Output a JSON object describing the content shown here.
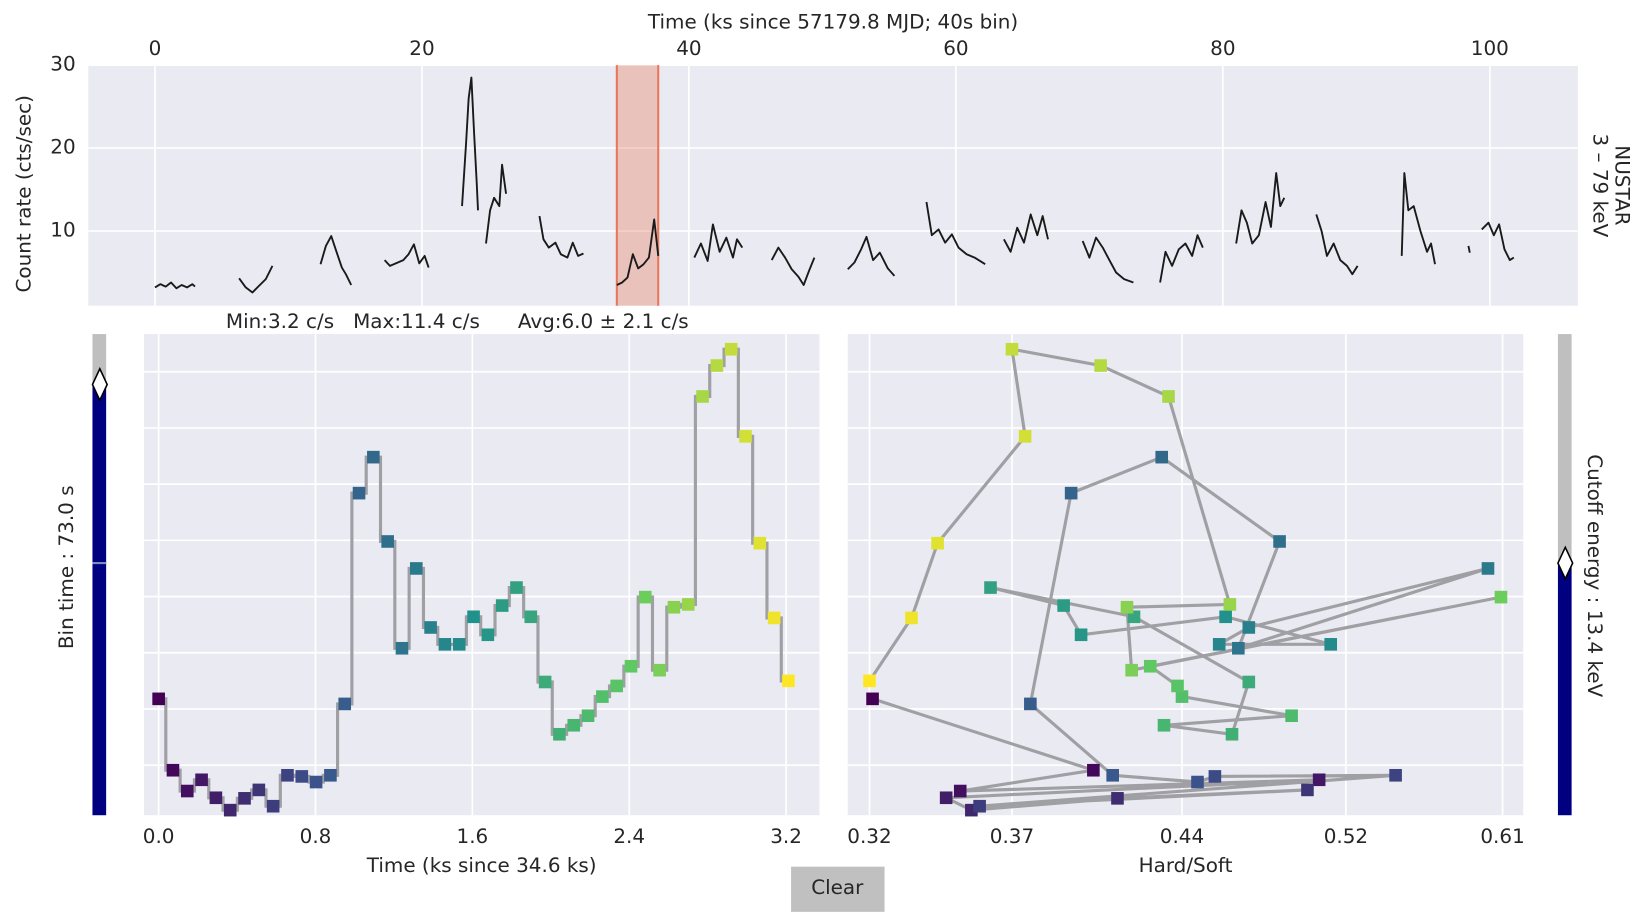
{
  "chart_data": [
    {
      "type": "line",
      "xlabel": "Time (ks since 57179.8 MJD; 40s bin)",
      "ylabel": "Count rate (cts/sec)",
      "side_label": [
        "NUSTAR",
        "3 – 79 keV"
      ],
      "x": [
        0,
        0.4,
        0.8,
        1.2,
        1.6,
        2.0,
        2.4,
        2.8,
        3.0,
        4.5,
        6.3,
        6.8,
        7.3,
        7.8,
        8.3,
        8.8,
        10.5,
        12.4,
        12.8,
        13.2,
        13.6,
        14.0,
        14.3,
        14.7,
        16.0,
        17.2,
        17.6,
        18.6,
        19.0,
        19.4,
        19.8,
        20.2,
        20.5,
        21.8,
        23.0,
        23.3,
        23.5,
        23.7,
        23.9,
        24.1,
        24.2,
        24.5,
        24.8,
        25.1,
        25.4,
        25.8,
        26.0,
        26.3,
        27.5,
        28.8,
        29.1,
        29.5,
        30.0,
        30.4,
        30.9,
        31.3,
        31.7,
        32.1,
        33.3,
        34.6,
        35.0,
        35.4,
        35.8,
        36.2,
        36.6,
        37.0,
        37.4,
        37.7,
        39.0,
        40.4,
        40.9,
        41.4,
        41.8,
        42.3,
        42.8,
        43.3,
        43.6,
        44.0,
        45.0,
        46.2,
        46.7,
        47.2,
        47.7,
        48.2,
        48.6,
        49.0,
        49.4,
        50.5,
        51.9,
        52.4,
        52.9,
        53.3,
        53.8,
        54.3,
        54.9,
        55.4,
        56.5,
        57.8,
        58.2,
        58.7,
        59.2,
        59.7,
        60.2,
        60.8,
        61.4,
        62.2,
        63.0,
        63.6,
        64.1,
        64.6,
        65.1,
        65.6,
        66.1,
        66.5,
        66.9,
        68.0,
        69.5,
        70.0,
        70.5,
        71.0,
        71.5,
        72.0,
        72.6,
        73.3,
        74.3,
        75.3,
        75.7,
        76.2,
        76.7,
        77.2,
        77.7,
        78.1,
        78.5,
        79.8,
        81.0,
        81.4,
        81.8,
        82.2,
        82.7,
        83.2,
        83.6,
        84.0,
        84.3,
        84.6,
        85.8,
        87.0,
        87.4,
        87.8,
        88.3,
        88.8,
        89.3,
        89.7,
        90.1,
        91.8,
        93.4,
        93.6,
        93.9,
        94.3,
        94.8,
        95.3,
        95.6,
        95.9,
        97.0,
        98.4,
        98.5,
        99.0,
        99.4,
        99.9,
        100.3,
        100.7,
        101.1,
        101.5,
        101.8
      ],
      "values": [
        3.2,
        3.6,
        3.3,
        3.8,
        3.1,
        3.5,
        3.2,
        3.6,
        3.3,
        null,
        4.3,
        3.2,
        2.6,
        3.4,
        4.2,
        5.8,
        null,
        6.0,
        8.2,
        9.4,
        7.5,
        5.6,
        4.8,
        3.5,
        null,
        6.5,
        5.8,
        6.5,
        7.2,
        8.4,
        6.1,
        7.0,
        5.6,
        null,
        13.0,
        20.5,
        26.0,
        28.5,
        22.0,
        16.0,
        12.5,
        null,
        8.5,
        12.5,
        14.0,
        13.0,
        18.0,
        14.5,
        null,
        11.8,
        9.0,
        8.0,
        8.6,
        7.2,
        6.8,
        8.6,
        7.0,
        7.3,
        null,
        3.5,
        3.8,
        4.4,
        7.2,
        5.5,
        6.0,
        6.8,
        11.4,
        7.0,
        null,
        6.8,
        8.5,
        6.4,
        10.8,
        7.5,
        9.2,
        6.8,
        9.0,
        8.0,
        null,
        6.5,
        8.0,
        6.8,
        5.4,
        4.5,
        3.5,
        5.2,
        6.8,
        null,
        5.4,
        6.2,
        7.8,
        9.3,
        6.5,
        7.4,
        5.5,
        4.6,
        null,
        13.5,
        9.5,
        10.2,
        8.6,
        9.6,
        8.0,
        7.2,
        6.8,
        6.0,
        null,
        9.0,
        7.5,
        10.4,
        8.6,
        12.0,
        9.5,
        11.8,
        9.0,
        null,
        8.8,
        6.8,
        9.2,
        8.0,
        6.5,
        5.0,
        4.2,
        3.8,
        null,
        3.8,
        7.5,
        5.8,
        7.8,
        8.5,
        7.0,
        9.5,
        8.0,
        null,
        8.5,
        12.5,
        11.0,
        8.5,
        9.5,
        13.5,
        10.5,
        17.0,
        13.0,
        14.0,
        null,
        12.0,
        10.0,
        7.0,
        8.5,
        6.5,
        5.8,
        4.8,
        5.8,
        null,
        7.0,
        17.0,
        12.5,
        13.0,
        10.0,
        7.5,
        8.5,
        6.0,
        null,
        8.2,
        7.4,
        null,
        10.2,
        11.0,
        9.5,
        10.8,
        7.8,
        6.5,
        6.8
      ],
      "color": "#1a1a1a",
      "span": [
        34.6,
        37.7
      ],
      "span_color": "#e8785a",
      "xlim": [
        -5,
        106.6
      ],
      "ylim": [
        1,
        30
      ],
      "xticks": [
        0,
        20,
        40,
        60,
        80,
        100
      ],
      "yticks": [
        10,
        20,
        30
      ],
      "xaxis_position": "top",
      "grid": true
    },
    {
      "type": "step",
      "annotation": "Min:3.2 c/s   Max:11.4 c/s      Avg:6.0 ± 2.1 c/s",
      "xlabel": "Time (ks since 34.6 ks)",
      "x": [
        0,
        0.073,
        0.146,
        0.219,
        0.292,
        0.365,
        0.438,
        0.511,
        0.584,
        0.657,
        0.73,
        0.803,
        0.876,
        0.949,
        1.022,
        1.095,
        1.168,
        1.241,
        1.314,
        1.387,
        1.46,
        1.533,
        1.606,
        1.679,
        1.752,
        1.825,
        1.898,
        1.971,
        2.044,
        2.117,
        2.19,
        2.263,
        2.336,
        2.409,
        2.482,
        2.555,
        2.628,
        2.701,
        2.774,
        2.847,
        2.92,
        2.993,
        3.066,
        3.139,
        3.212
      ],
      "values": [
        5.18,
        3.91,
        3.54,
        3.74,
        3.42,
        3.2,
        3.41,
        3.56,
        3.27,
        3.82,
        3.8,
        3.7,
        3.82,
        5.09,
        8.84,
        9.48,
        7.98,
        6.08,
        7.5,
        6.45,
        6.15,
        6.15,
        6.64,
        6.32,
        6.84,
        7.16,
        6.64,
        5.48,
        4.55,
        4.71,
        4.88,
        5.22,
        5.41,
        5.76,
        6.99,
        5.69,
        6.81,
        6.86,
        10.56,
        11.11,
        11.4,
        9.85,
        7.95,
        6.62,
        5.5
      ],
      "colormap": "viridis",
      "line_color": "#a0a0a4",
      "xlim": [
        -0.075,
        3.37
      ],
      "ylim": [
        3.11,
        11.67
      ],
      "xticks": [
        {
          "value": 0,
          "label": "0.0"
        },
        0.8,
        1.6,
        2.4,
        3.2
      ],
      "ygrid": [
        4,
        5,
        6,
        7,
        8,
        9,
        10,
        11
      ],
      "grid": true
    },
    {
      "type": "scatter",
      "xlabel": "Hard/Soft",
      "x": [
        0.321,
        0.402,
        0.351,
        0.506,
        0.346,
        0.355,
        0.412,
        0.5,
        0.358,
        0.547,
        0.455,
        0.447,
        0.41,
        0.377,
        0.393,
        0.431,
        0.486,
        0.466,
        0.601,
        0.471,
        0.457,
        0.512,
        0.46,
        0.397,
        0.39,
        0.362,
        0.419,
        0.471,
        0.463,
        0.432,
        0.492,
        0.44,
        0.438,
        0.426,
        0.609,
        0.418,
        0.416,
        0.462,
        0.434,
        0.405,
        0.37,
        0.375,
        0.343,
        0.334,
        0.32
      ],
      "values": [
        5.18,
        3.91,
        3.54,
        3.74,
        3.42,
        3.2,
        3.41,
        3.56,
        3.27,
        3.82,
        3.8,
        3.7,
        3.82,
        5.09,
        8.84,
        9.48,
        7.98,
        6.08,
        7.5,
        6.45,
        6.15,
        6.15,
        6.64,
        6.32,
        6.84,
        7.16,
        6.64,
        5.48,
        4.55,
        4.71,
        4.88,
        5.22,
        5.41,
        5.76,
        6.99,
        5.69,
        6.81,
        6.86,
        10.56,
        11.11,
        11.4,
        9.85,
        7.95,
        6.62,
        5.5
      ],
      "colormap": "viridis",
      "line_color": "#a0a0a4",
      "xscale": "log",
      "xlim": [
        0.313,
        0.623
      ],
      "ylim": [
        3.11,
        11.67
      ],
      "xticks": [
        0.32,
        0.37,
        0.44,
        0.52,
        0.61
      ],
      "ygrid": [
        4,
        5,
        6,
        7,
        8,
        9,
        10,
        11
      ],
      "grid": true
    }
  ],
  "controls": {
    "bin_slider": {
      "label": "Bin time : 73.0 s"
    },
    "energy_slider": {
      "label": "Cutoff energy : 13.4 keV"
    },
    "clear_button": "Clear"
  }
}
